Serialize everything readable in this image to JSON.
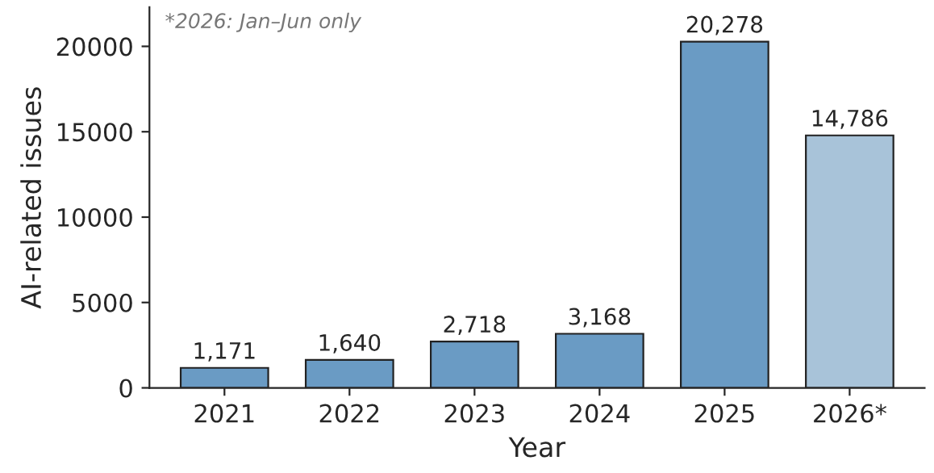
{
  "chart_data": {
    "type": "bar",
    "xlabel": "Year",
    "ylabel": "AI-related issues",
    "categories": [
      "2021",
      "2022",
      "2023",
      "2024",
      "2025",
      "2026*"
    ],
    "values": [
      1171,
      1640,
      2718,
      3168,
      20278,
      14786
    ],
    "colors": [
      "#6a9bc4",
      "#6a9bc4",
      "#6a9bc4",
      "#6a9bc4",
      "#6a9bc4",
      "#a8c3d9"
    ],
    "value_labels": [
      "1,171",
      "1,640",
      "2,718",
      "3,168",
      "20,278",
      "14,786"
    ],
    "ylim": [
      0,
      22300
    ],
    "yticks": [
      0,
      5000,
      10000,
      15000,
      20000
    ],
    "annotations": [
      "*2026: Jan–Jun only"
    ],
    "grid": false,
    "legend": false
  }
}
